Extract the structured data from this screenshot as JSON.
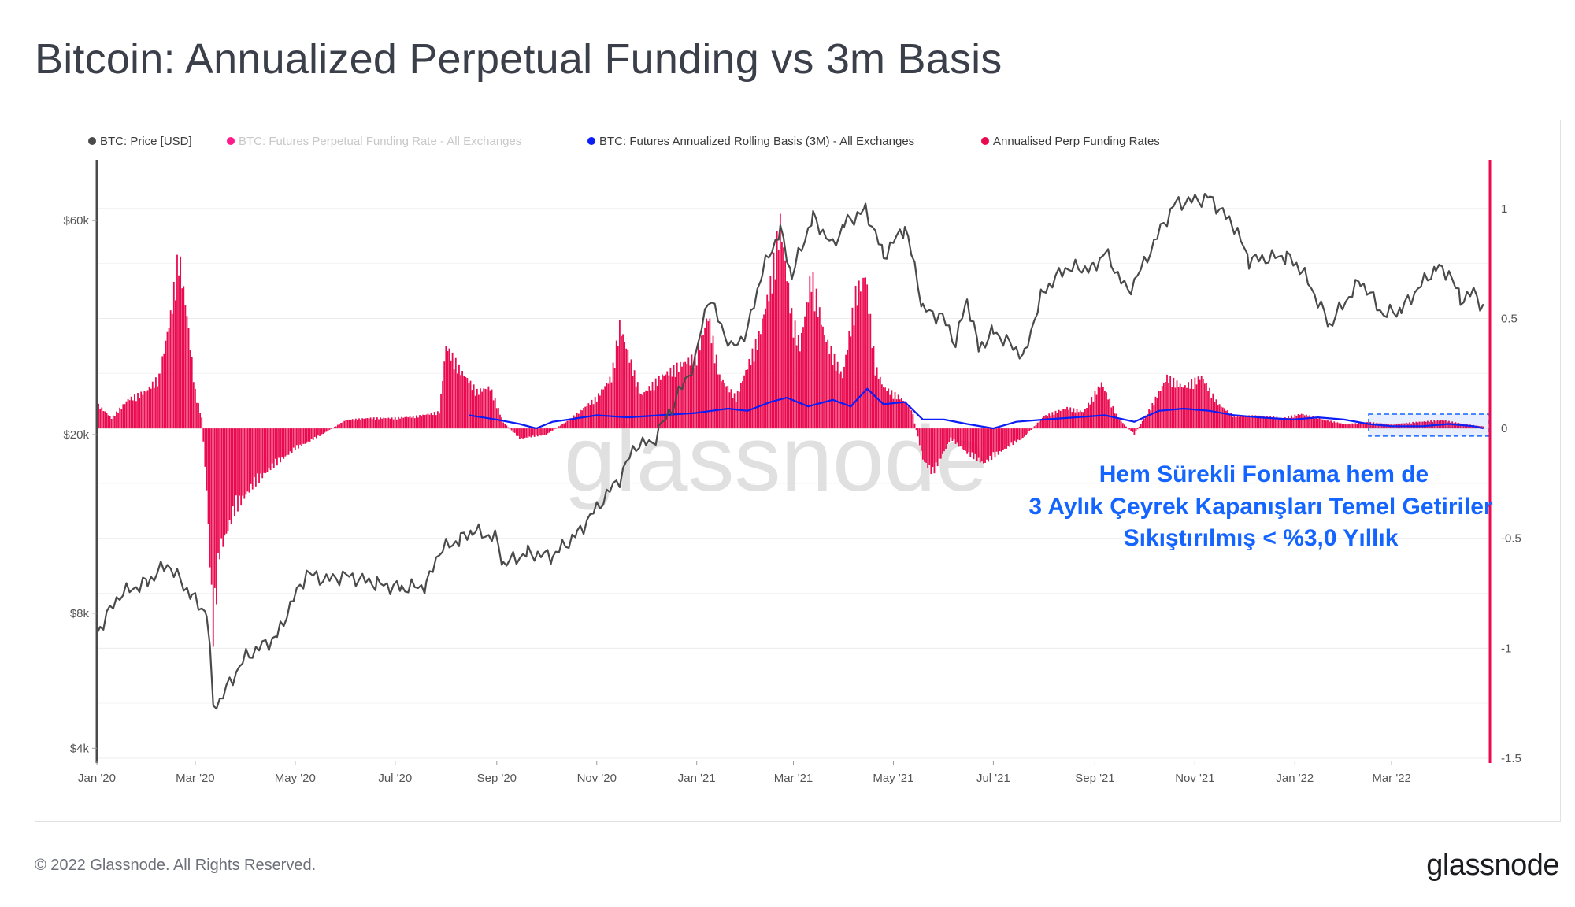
{
  "page": {
    "title": "Bitcoin: Annualized Perpetual Funding vs 3m Basis",
    "copyright": "© 2022 Glassnode. All Rights Reserved.",
    "logo_text": "glassnode",
    "watermark_text": "glassnode"
  },
  "colors": {
    "price": "#4a4a4a",
    "funding_raw": "#ff1a8c",
    "basis": "#0a1ef5",
    "annualised_funding": "#ea0a4f",
    "annotation": "#1464ff",
    "highlight": "#1464ff"
  },
  "annotation": {
    "lines": [
      "Hem Sürekli Fonlama hem de",
      "3 Aylık Çeyrek Kapanışları Temel Getiriler",
      "Sıkıştırılmış < %3,0 Yıllık"
    ]
  },
  "chart_data": {
    "type": "line",
    "title": "Bitcoin: Annualized Perpetual Funding vs 3m Basis",
    "x_range": [
      "2020-01-01",
      "2022-04-30"
    ],
    "x_ticks": [
      {
        "date": "2020-01-01",
        "label": "Jan '20"
      },
      {
        "date": "2020-03-01",
        "label": "Mar '20"
      },
      {
        "date": "2020-05-01",
        "label": "May '20"
      },
      {
        "date": "2020-07-01",
        "label": "Jul '20"
      },
      {
        "date": "2020-09-01",
        "label": "Sep '20"
      },
      {
        "date": "2020-11-01",
        "label": "Nov '20"
      },
      {
        "date": "2021-01-01",
        "label": "Jan '21"
      },
      {
        "date": "2021-03-01",
        "label": "Mar '21"
      },
      {
        "date": "2021-05-01",
        "label": "May '21"
      },
      {
        "date": "2021-07-01",
        "label": "Jul '21"
      },
      {
        "date": "2021-09-01",
        "label": "Sep '21"
      },
      {
        "date": "2021-11-01",
        "label": "Nov '21"
      },
      {
        "date": "2022-01-01",
        "label": "Jan '22"
      },
      {
        "date": "2022-03-01",
        "label": "Mar '22"
      }
    ],
    "y_left": {
      "scale": "log",
      "range": [
        3800,
        80000
      ],
      "ticks": [
        {
          "value": 4000,
          "label": "$4k"
        },
        {
          "value": 8000,
          "label": "$8k"
        },
        {
          "value": 20000,
          "label": "$20k"
        },
        {
          "value": 60000,
          "label": "$60k"
        }
      ]
    },
    "y_right": {
      "scale": "linear",
      "range": [
        -1.5,
        1.2
      ],
      "ticks": [
        {
          "value": 1,
          "label": "1"
        },
        {
          "value": 0.5,
          "label": "0.5"
        },
        {
          "value": 0,
          "label": "0"
        },
        {
          "value": -0.5,
          "label": "-0.5"
        },
        {
          "value": -1,
          "label": "-1"
        },
        {
          "value": -1.5,
          "label": "-1.5"
        }
      ]
    },
    "legend": [
      {
        "label": "BTC: Price [USD]",
        "color": "#4a4a4a",
        "muted": false
      },
      {
        "label": "BTC: Futures Perpetual Funding Rate - All Exchanges",
        "color": "#ff1a8c",
        "muted": true
      },
      {
        "label": "BTC: Futures Annualized Rolling Basis (3M) - All Exchanges",
        "color": "#0a1ef5",
        "muted": false
      },
      {
        "label": "Annualised Perp Funding Rates",
        "color": "#ea0a4f",
        "muted": false
      }
    ],
    "series": [
      {
        "name": "BTC: Price [USD]",
        "axis": "left",
        "kind": "line",
        "points": [
          [
            "2020-01-01",
            7200
          ],
          [
            "2020-01-15",
            8800
          ],
          [
            "2020-02-01",
            9400
          ],
          [
            "2020-02-13",
            10300
          ],
          [
            "2020-02-28",
            8700
          ],
          [
            "2020-03-08",
            8000
          ],
          [
            "2020-03-12",
            5000
          ],
          [
            "2020-03-16",
            5100
          ],
          [
            "2020-04-01",
            6400
          ],
          [
            "2020-04-20",
            7100
          ],
          [
            "2020-05-08",
            9800
          ],
          [
            "2020-05-20",
            9500
          ],
          [
            "2020-06-01",
            9700
          ],
          [
            "2020-06-20",
            9300
          ],
          [
            "2020-07-05",
            9100
          ],
          [
            "2020-07-20",
            9200
          ],
          [
            "2020-07-28",
            11000
          ],
          [
            "2020-08-10",
            11700
          ],
          [
            "2020-08-17",
            12200
          ],
          [
            "2020-08-31",
            11800
          ],
          [
            "2020-09-05",
            10300
          ],
          [
            "2020-09-20",
            10900
          ],
          [
            "2020-10-05",
            10700
          ],
          [
            "2020-10-20",
            12000
          ],
          [
            "2020-11-01",
            13700
          ],
          [
            "2020-11-15",
            16000
          ],
          [
            "2020-11-25",
            19000
          ],
          [
            "2020-12-05",
            19200
          ],
          [
            "2020-12-17",
            23000
          ],
          [
            "2020-12-31",
            29000
          ],
          [
            "2021-01-08",
            40500
          ],
          [
            "2021-01-22",
            31000
          ],
          [
            "2021-02-01",
            34000
          ],
          [
            "2021-02-10",
            46000
          ],
          [
            "2021-02-21",
            57000
          ],
          [
            "2021-02-28",
            45000
          ],
          [
            "2021-03-13",
            61000
          ],
          [
            "2021-03-25",
            52500
          ],
          [
            "2021-04-01",
            59000
          ],
          [
            "2021-04-14",
            63500
          ],
          [
            "2021-04-25",
            50000
          ],
          [
            "2021-05-08",
            58000
          ],
          [
            "2021-05-19",
            38000
          ],
          [
            "2021-05-31",
            36500
          ],
          [
            "2021-06-08",
            32000
          ],
          [
            "2021-06-15",
            40000
          ],
          [
            "2021-06-22",
            31000
          ],
          [
            "2021-07-01",
            34000
          ],
          [
            "2021-07-20",
            29900
          ],
          [
            "2021-07-31",
            41500
          ],
          [
            "2021-08-14",
            47000
          ],
          [
            "2021-08-31",
            47000
          ],
          [
            "2021-09-07",
            51000
          ],
          [
            "2021-09-21",
            41500
          ],
          [
            "2021-10-01",
            48000
          ],
          [
            "2021-10-20",
            65500
          ],
          [
            "2021-11-10",
            67500
          ],
          [
            "2021-11-25",
            58000
          ],
          [
            "2021-12-04",
            49000
          ],
          [
            "2021-12-27",
            50000
          ],
          [
            "2022-01-05",
            46500
          ],
          [
            "2022-01-22",
            35000
          ],
          [
            "2022-02-10",
            44000
          ],
          [
            "2022-02-24",
            37000
          ],
          [
            "2022-03-07",
            38000
          ],
          [
            "2022-03-28",
            47000
          ],
          [
            "2022-04-05",
            46000
          ],
          [
            "2022-04-12",
            40000
          ],
          [
            "2022-04-20",
            41500
          ],
          [
            "2022-04-26",
            38500
          ]
        ]
      },
      {
        "name": "BTC: Futures Annualized Rolling Basis (3M) - All Exchanges",
        "axis": "right",
        "kind": "line",
        "points": [
          [
            "2020-08-15",
            0.06
          ],
          [
            "2020-09-01",
            0.04
          ],
          [
            "2020-09-15",
            0.02
          ],
          [
            "2020-09-25",
            0.0
          ],
          [
            "2020-10-05",
            0.03
          ],
          [
            "2020-10-15",
            0.04
          ],
          [
            "2020-11-01",
            0.06
          ],
          [
            "2020-11-20",
            0.05
          ],
          [
            "2020-12-10",
            0.06
          ],
          [
            "2020-12-31",
            0.07
          ],
          [
            "2021-01-10",
            0.08
          ],
          [
            "2021-01-20",
            0.09
          ],
          [
            "2021-02-01",
            0.08
          ],
          [
            "2021-02-15",
            0.12
          ],
          [
            "2021-02-25",
            0.14
          ],
          [
            "2021-03-10",
            0.1
          ],
          [
            "2021-03-25",
            0.13
          ],
          [
            "2021-04-05",
            0.1
          ],
          [
            "2021-04-15",
            0.18
          ],
          [
            "2021-04-25",
            0.11
          ],
          [
            "2021-05-08",
            0.12
          ],
          [
            "2021-05-19",
            0.04
          ],
          [
            "2021-06-01",
            0.04
          ],
          [
            "2021-06-15",
            0.02
          ],
          [
            "2021-07-01",
            0.0
          ],
          [
            "2021-07-15",
            0.03
          ],
          [
            "2021-08-01",
            0.04
          ],
          [
            "2021-08-20",
            0.05
          ],
          [
            "2021-09-07",
            0.06
          ],
          [
            "2021-09-25",
            0.03
          ],
          [
            "2021-10-10",
            0.08
          ],
          [
            "2021-10-25",
            0.09
          ],
          [
            "2021-11-10",
            0.08
          ],
          [
            "2021-11-25",
            0.06
          ],
          [
            "2021-12-10",
            0.05
          ],
          [
            "2021-12-31",
            0.04
          ],
          [
            "2022-01-15",
            0.05
          ],
          [
            "2022-01-31",
            0.04
          ],
          [
            "2022-02-15",
            0.02
          ],
          [
            "2022-03-01",
            0.01
          ],
          [
            "2022-03-20",
            0.01
          ],
          [
            "2022-04-05",
            0.02
          ],
          [
            "2022-04-20",
            0.01
          ],
          [
            "2022-04-26",
            0.0
          ]
        ]
      },
      {
        "name": "Annualised Perp Funding Rates",
        "axis": "right",
        "kind": "bar",
        "points": [
          [
            "2020-01-01",
            0.12
          ],
          [
            "2020-01-10",
            0.05
          ],
          [
            "2020-01-20",
            0.14
          ],
          [
            "2020-01-31",
            0.18
          ],
          [
            "2020-02-08",
            0.25
          ],
          [
            "2020-02-15",
            0.55
          ],
          [
            "2020-02-20",
            0.85
          ],
          [
            "2020-02-25",
            0.55
          ],
          [
            "2020-03-01",
            0.18
          ],
          [
            "2020-03-05",
            0.05
          ],
          [
            "2020-03-08",
            -0.3
          ],
          [
            "2020-03-12",
            -1.0
          ],
          [
            "2020-03-16",
            -0.6
          ],
          [
            "2020-03-25",
            -0.4
          ],
          [
            "2020-04-05",
            -0.28
          ],
          [
            "2020-04-15",
            -0.2
          ],
          [
            "2020-05-01",
            -0.1
          ],
          [
            "2020-05-15",
            -0.04
          ],
          [
            "2020-06-01",
            0.04
          ],
          [
            "2020-06-15",
            0.05
          ],
          [
            "2020-07-01",
            0.05
          ],
          [
            "2020-07-15",
            0.06
          ],
          [
            "2020-07-28",
            0.08
          ],
          [
            "2020-08-01",
            0.4
          ],
          [
            "2020-08-10",
            0.28
          ],
          [
            "2020-08-20",
            0.18
          ],
          [
            "2020-08-28",
            0.2
          ],
          [
            "2020-09-05",
            0.03
          ],
          [
            "2020-09-15",
            -0.05
          ],
          [
            "2020-10-01",
            -0.03
          ],
          [
            "2020-10-15",
            0.04
          ],
          [
            "2020-11-01",
            0.15
          ],
          [
            "2020-11-10",
            0.25
          ],
          [
            "2020-11-15",
            0.5
          ],
          [
            "2020-11-28",
            0.16
          ],
          [
            "2020-12-10",
            0.25
          ],
          [
            "2020-12-20",
            0.3
          ],
          [
            "2021-01-01",
            0.35
          ],
          [
            "2021-01-08",
            0.55
          ],
          [
            "2021-01-15",
            0.25
          ],
          [
            "2021-01-25",
            0.15
          ],
          [
            "2021-02-08",
            0.45
          ],
          [
            "2021-02-15",
            0.7
          ],
          [
            "2021-02-21",
            1.0
          ],
          [
            "2021-02-28",
            0.55
          ],
          [
            "2021-03-05",
            0.4
          ],
          [
            "2021-03-12",
            0.75
          ],
          [
            "2021-03-20",
            0.45
          ],
          [
            "2021-03-31",
            0.25
          ],
          [
            "2021-04-08",
            0.65
          ],
          [
            "2021-04-14",
            0.75
          ],
          [
            "2021-04-20",
            0.3
          ],
          [
            "2021-04-25",
            0.2
          ],
          [
            "2021-05-05",
            0.15
          ],
          [
            "2021-05-12",
            0.1
          ],
          [
            "2021-05-19",
            -0.15
          ],
          [
            "2021-05-25",
            -0.22
          ],
          [
            "2021-06-05",
            -0.05
          ],
          [
            "2021-06-15",
            -0.12
          ],
          [
            "2021-06-25",
            -0.17
          ],
          [
            "2021-07-10",
            -0.09
          ],
          [
            "2021-07-20",
            -0.04
          ],
          [
            "2021-08-01",
            0.06
          ],
          [
            "2021-08-15",
            0.1
          ],
          [
            "2021-08-25",
            0.08
          ],
          [
            "2021-09-05",
            0.22
          ],
          [
            "2021-09-15",
            0.05
          ],
          [
            "2021-09-25",
            -0.03
          ],
          [
            "2021-10-05",
            0.1
          ],
          [
            "2021-10-15",
            0.25
          ],
          [
            "2021-10-25",
            0.2
          ],
          [
            "2021-11-05",
            0.25
          ],
          [
            "2021-11-15",
            0.12
          ],
          [
            "2021-11-25",
            0.06
          ],
          [
            "2021-12-10",
            0.06
          ],
          [
            "2021-12-25",
            0.05
          ],
          [
            "2022-01-05",
            0.07
          ],
          [
            "2022-01-20",
            0.04
          ],
          [
            "2022-02-01",
            0.02
          ],
          [
            "2022-02-15",
            0.03
          ],
          [
            "2022-03-01",
            0.02
          ],
          [
            "2022-03-15",
            0.03
          ],
          [
            "2022-04-01",
            0.04
          ],
          [
            "2022-04-15",
            0.02
          ],
          [
            "2022-04-26",
            0.01
          ]
        ]
      }
    ],
    "highlight_range": {
      "x_start": "2022-02-15",
      "x_end": "2022-04-30",
      "y_from": -0.035,
      "y_to": 0.065
    }
  }
}
